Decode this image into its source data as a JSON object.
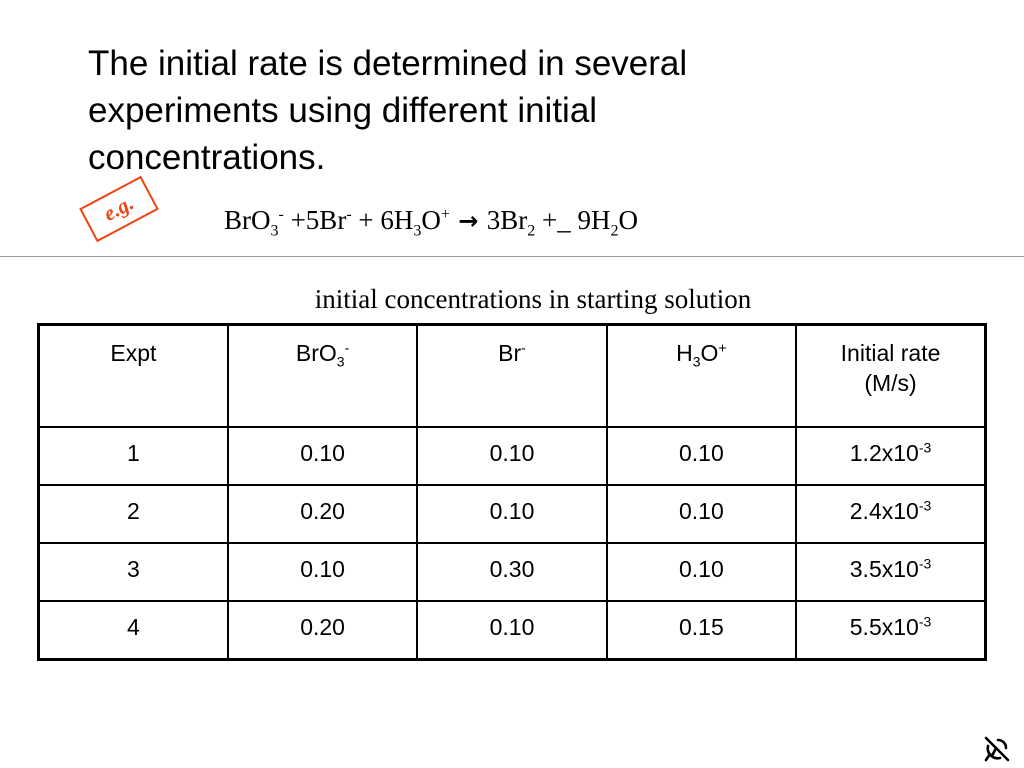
{
  "slide": {
    "heading": "The initial rate is determined in several experiments using different initial concentrations.",
    "eg_stamp": "e.g.",
    "table_caption": "initial concentrations in starting solution"
  },
  "equation": {
    "bro3": "BrO",
    "bro3_sub": "3",
    "bro3_sup": "-",
    "plus5br": " +5Br",
    "br_sup": "-",
    "plus6h": " + 6H",
    "h3o_sub": "3",
    "o_part": "O",
    "h3o_sup": "+",
    "arrow": " → ",
    "br2": "3Br",
    "br2_sub": "2",
    "plus9h": " +_ 9H",
    "h2o_sub": "2",
    "o_end": "O"
  },
  "table": {
    "headers": {
      "expt": "Expt",
      "bro3": "BrO",
      "bro3_sub": "3",
      "bro3_sup": "-",
      "br": "Br",
      "br_sup": "-",
      "h3o_h": "H",
      "h3o_sub": "3",
      "h3o_o": "O",
      "h3o_sup": "+",
      "rate_line1": "Initial rate",
      "rate_line2": "(M/s)"
    },
    "rows": [
      {
        "expt": "1",
        "bro3": "0.10",
        "br": "0.10",
        "h3o": "0.10",
        "rate_mantissa": "1.2x10",
        "rate_exp": "-3"
      },
      {
        "expt": "2",
        "bro3": "0.20",
        "br": "0.10",
        "h3o": "0.10",
        "rate_mantissa": "2.4x10",
        "rate_exp": "-3"
      },
      {
        "expt": "3",
        "bro3": "0.10",
        "br": "0.30",
        "h3o": "0.10",
        "rate_mantissa": "3.5x10",
        "rate_exp": "-3"
      },
      {
        "expt": "4",
        "bro3": "0.20",
        "br": "0.10",
        "h3o": "0.15",
        "rate_mantissa": "5.5x10",
        "rate_exp": "-3"
      }
    ]
  },
  "icons": {
    "corner": "satellite-dish-icon"
  },
  "colors": {
    "stamp": "#ee4411",
    "divider": "#9a9a9a"
  }
}
